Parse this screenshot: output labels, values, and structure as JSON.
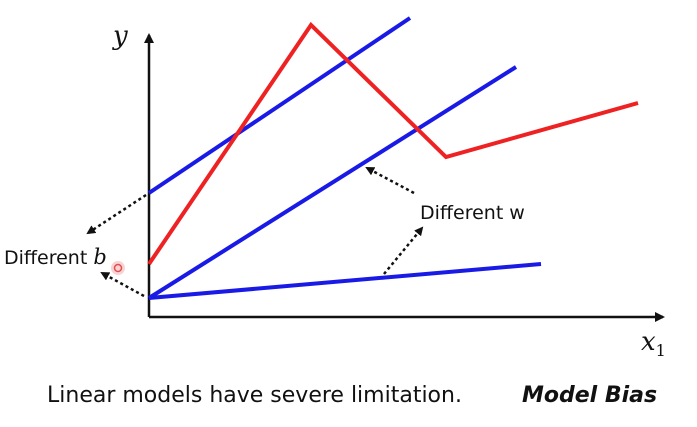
{
  "diagram": {
    "y_axis_label": "y",
    "x_axis_label_var": "x",
    "x_axis_label_sub": "1",
    "label_w": "Different w",
    "label_b_prefix": "Different ",
    "label_b_var": "b",
    "colors": {
      "axis": "#111111",
      "linear": "#1a1ae6",
      "piecewise": "#ee2222",
      "arrow": "#111111",
      "cursor": "#e05050"
    }
  },
  "caption": {
    "text": "Linear models have severe limitation.",
    "emphasis": "Model Bias"
  }
}
